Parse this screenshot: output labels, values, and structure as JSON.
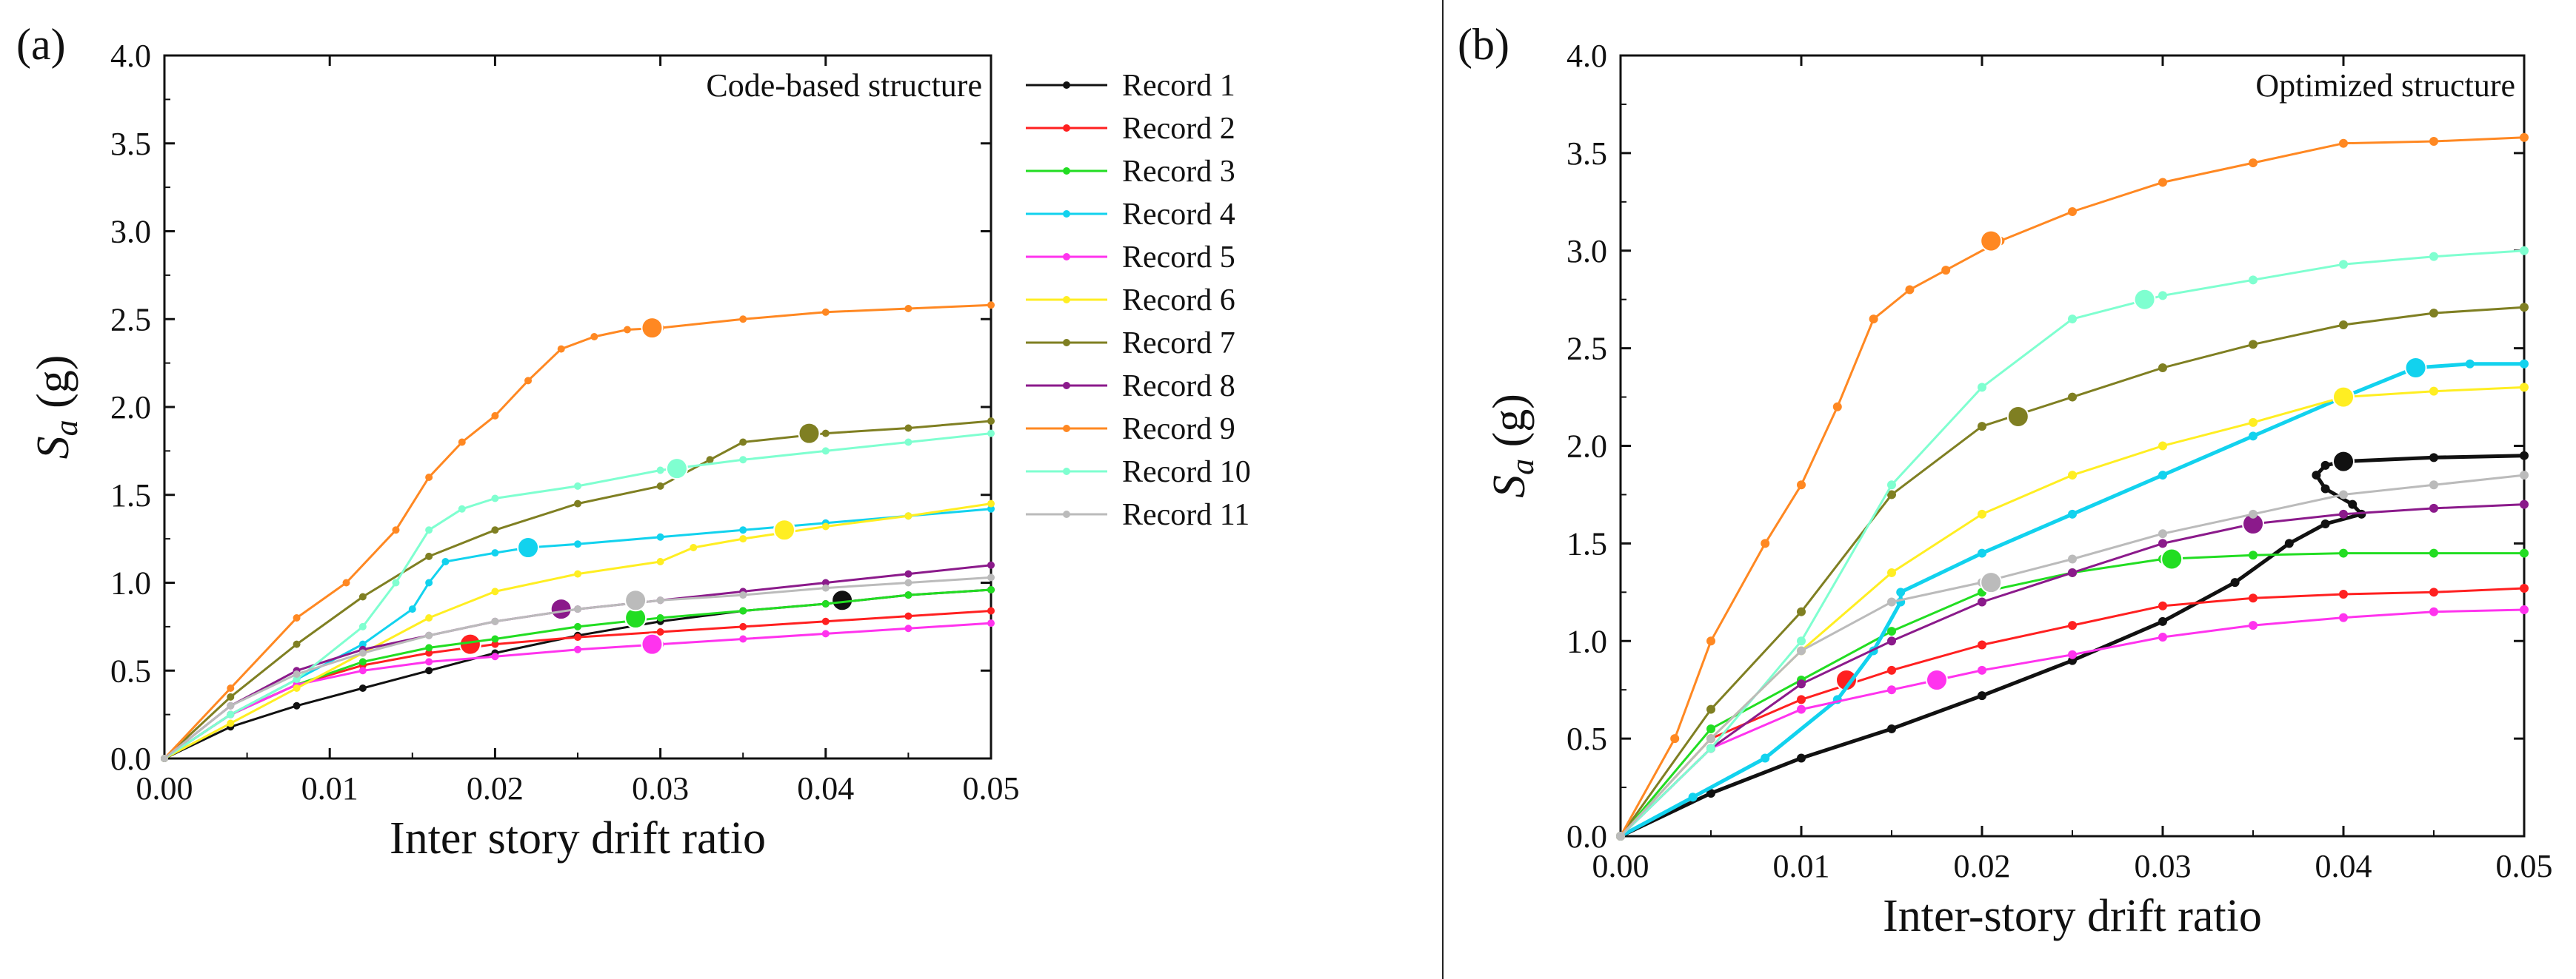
{
  "chart_data": [
    {
      "panel_label": "(a)",
      "type": "line",
      "annotation": "Code-based structure",
      "xlabel": "Inter story drift ratio",
      "ylabel_main": "S",
      "ylabel_sub": "a",
      "ylabel_unit": " (g)",
      "xlim": [
        0,
        0.05
      ],
      "ylim": [
        0,
        4.0
      ],
      "xticks": [
        "0.00",
        "0.01",
        "0.02",
        "0.03",
        "0.04",
        "0.05"
      ],
      "yticks": [
        "0.0",
        "0.5",
        "1.0",
        "1.5",
        "2.0",
        "2.5",
        "3.0",
        "3.5",
        "4.0"
      ],
      "legend": {
        "placement": "right-outside"
      },
      "series": [
        {
          "name": "Record 1",
          "color": "#111111",
          "x": [
            0,
            0.004,
            0.008,
            0.012,
            0.016,
            0.02,
            0.025,
            0.03,
            0.035,
            0.04,
            0.045,
            0.05
          ],
          "y": [
            0,
            0.18,
            0.3,
            0.4,
            0.5,
            0.6,
            0.7,
            0.78,
            0.84,
            0.88,
            0.93,
            0.96
          ],
          "marker": [
            0.041,
            0.9
          ]
        },
        {
          "name": "Record 2",
          "color": "#ff2020",
          "x": [
            0,
            0.004,
            0.008,
            0.012,
            0.016,
            0.02,
            0.025,
            0.03,
            0.035,
            0.04,
            0.045,
            0.05
          ],
          "y": [
            0,
            0.25,
            0.42,
            0.53,
            0.6,
            0.65,
            0.69,
            0.72,
            0.75,
            0.78,
            0.81,
            0.84
          ],
          "marker": [
            0.0185,
            0.65
          ]
        },
        {
          "name": "Record 3",
          "color": "#22dd22",
          "x": [
            0,
            0.004,
            0.008,
            0.012,
            0.016,
            0.02,
            0.025,
            0.03,
            0.035,
            0.04,
            0.045,
            0.05
          ],
          "y": [
            0,
            0.25,
            0.42,
            0.55,
            0.63,
            0.68,
            0.75,
            0.8,
            0.84,
            0.88,
            0.93,
            0.96
          ],
          "marker": [
            0.0285,
            0.8
          ]
        },
        {
          "name": "Record 4",
          "color": "#12d2ee",
          "x": [
            0,
            0.004,
            0.008,
            0.012,
            0.015,
            0.016,
            0.017,
            0.02,
            0.022,
            0.025,
            0.03,
            0.035,
            0.04,
            0.045,
            0.05
          ],
          "y": [
            0,
            0.25,
            0.45,
            0.65,
            0.85,
            1.0,
            1.12,
            1.17,
            1.2,
            1.22,
            1.26,
            1.3,
            1.34,
            1.38,
            1.42
          ],
          "marker": [
            0.022,
            1.2
          ]
        },
        {
          "name": "Record 5",
          "color": "#ff33ee",
          "x": [
            0,
            0.004,
            0.008,
            0.012,
            0.016,
            0.02,
            0.025,
            0.03,
            0.035,
            0.04,
            0.045,
            0.05
          ],
          "y": [
            0,
            0.25,
            0.42,
            0.5,
            0.55,
            0.58,
            0.62,
            0.65,
            0.68,
            0.71,
            0.74,
            0.77
          ],
          "marker": [
            0.0295,
            0.65
          ]
        },
        {
          "name": "Record 6",
          "color": "#ffee22",
          "x": [
            0,
            0.004,
            0.008,
            0.012,
            0.016,
            0.02,
            0.025,
            0.03,
            0.032,
            0.035,
            0.04,
            0.045,
            0.05
          ],
          "y": [
            0,
            0.2,
            0.4,
            0.6,
            0.8,
            0.95,
            1.05,
            1.12,
            1.2,
            1.25,
            1.32,
            1.38,
            1.45
          ],
          "marker": [
            0.0375,
            1.3
          ]
        },
        {
          "name": "Record 7",
          "color": "#7f7f22",
          "x": [
            0,
            0.004,
            0.008,
            0.012,
            0.016,
            0.02,
            0.025,
            0.03,
            0.033,
            0.035,
            0.04,
            0.045,
            0.05
          ],
          "y": [
            0,
            0.35,
            0.65,
            0.92,
            1.15,
            1.3,
            1.45,
            1.55,
            1.7,
            1.8,
            1.85,
            1.88,
            1.92
          ],
          "marker": [
            0.039,
            1.85
          ]
        },
        {
          "name": "Record 8",
          "color": "#8b1a8b",
          "x": [
            0,
            0.004,
            0.008,
            0.012,
            0.016,
            0.02,
            0.025,
            0.03,
            0.035,
            0.04,
            0.045,
            0.05
          ],
          "y": [
            0,
            0.3,
            0.5,
            0.62,
            0.7,
            0.78,
            0.85,
            0.9,
            0.95,
            1.0,
            1.05,
            1.1
          ],
          "marker": [
            0.024,
            0.85
          ]
        },
        {
          "name": "Record 9",
          "color": "#ff8822",
          "x": [
            0,
            0.004,
            0.008,
            0.011,
            0.014,
            0.016,
            0.018,
            0.02,
            0.022,
            0.024,
            0.026,
            0.028,
            0.03,
            0.035,
            0.04,
            0.045,
            0.05
          ],
          "y": [
            0,
            0.4,
            0.8,
            1.0,
            1.3,
            1.6,
            1.8,
            1.95,
            2.15,
            2.33,
            2.4,
            2.44,
            2.45,
            2.5,
            2.54,
            2.56,
            2.58
          ],
          "marker": [
            0.0295,
            2.45
          ]
        },
        {
          "name": "Record 10",
          "color": "#7fffd0",
          "x": [
            0,
            0.004,
            0.008,
            0.012,
            0.014,
            0.016,
            0.018,
            0.02,
            0.025,
            0.03,
            0.035,
            0.04,
            0.045,
            0.05
          ],
          "y": [
            0,
            0.25,
            0.45,
            0.75,
            1.0,
            1.3,
            1.42,
            1.48,
            1.55,
            1.64,
            1.7,
            1.75,
            1.8,
            1.85
          ],
          "marker": [
            0.031,
            1.65
          ]
        },
        {
          "name": "Record 11",
          "color": "#bbbbbb",
          "x": [
            0,
            0.004,
            0.008,
            0.012,
            0.016,
            0.02,
            0.025,
            0.03,
            0.035,
            0.04,
            0.045,
            0.05
          ],
          "y": [
            0,
            0.3,
            0.48,
            0.6,
            0.7,
            0.78,
            0.85,
            0.9,
            0.93,
            0.97,
            1.0,
            1.03
          ],
          "marker": [
            0.0285,
            0.9
          ]
        }
      ]
    },
    {
      "panel_label": "(b)",
      "type": "line",
      "annotation": "Optimized structure",
      "xlabel": "Inter-story drift ratio",
      "ylabel_main": "S",
      "ylabel_sub": "a",
      "ylabel_unit": " (g)",
      "xlim": [
        0,
        0.05
      ],
      "ylim": [
        0,
        4.0
      ],
      "xticks": [
        "0.00",
        "0.01",
        "0.02",
        "0.03",
        "0.04",
        "0.05"
      ],
      "yticks": [
        "0.0",
        "0.5",
        "1.0",
        "1.5",
        "2.0",
        "2.5",
        "3.0",
        "3.5",
        "4.0"
      ],
      "series": [
        {
          "name": "Record 1",
          "color": "#111111",
          "x": [
            0,
            0.005,
            0.01,
            0.015,
            0.02,
            0.025,
            0.03,
            0.034,
            0.037,
            0.039,
            0.041,
            0.0405,
            0.039,
            0.0385,
            0.039,
            0.04,
            0.045,
            0.05
          ],
          "y": [
            0,
            0.22,
            0.4,
            0.55,
            0.72,
            0.9,
            1.1,
            1.3,
            1.5,
            1.6,
            1.65,
            1.7,
            1.78,
            1.85,
            1.9,
            1.92,
            1.94,
            1.95
          ],
          "marker": [
            0.04,
            1.92
          ]
        },
        {
          "name": "Record 2",
          "color": "#ff2020",
          "x": [
            0,
            0.005,
            0.01,
            0.015,
            0.02,
            0.025,
            0.03,
            0.035,
            0.04,
            0.045,
            0.05
          ],
          "y": [
            0,
            0.5,
            0.7,
            0.85,
            0.98,
            1.08,
            1.18,
            1.22,
            1.24,
            1.25,
            1.27
          ],
          "marker": [
            0.0125,
            0.8
          ]
        },
        {
          "name": "Record 3",
          "color": "#22dd22",
          "x": [
            0,
            0.005,
            0.01,
            0.015,
            0.02,
            0.025,
            0.03,
            0.035,
            0.04,
            0.045,
            0.05
          ],
          "y": [
            0,
            0.55,
            0.8,
            1.05,
            1.25,
            1.35,
            1.42,
            1.44,
            1.45,
            1.45,
            1.45
          ],
          "marker": [
            0.0305,
            1.42
          ]
        },
        {
          "name": "Record 4",
          "color": "#12d2ee",
          "x": [
            0,
            0.004,
            0.008,
            0.012,
            0.014,
            0.0155,
            0.0155,
            0.02,
            0.025,
            0.03,
            0.035,
            0.04,
            0.044,
            0.047,
            0.05
          ],
          "y": [
            0,
            0.2,
            0.4,
            0.7,
            0.95,
            1.2,
            1.25,
            1.45,
            1.65,
            1.85,
            2.05,
            2.25,
            2.4,
            2.42,
            2.42
          ],
          "marker": [
            0.044,
            2.4
          ]
        },
        {
          "name": "Record 5",
          "color": "#ff33ee",
          "x": [
            0,
            0.005,
            0.01,
            0.015,
            0.02,
            0.025,
            0.03,
            0.035,
            0.04,
            0.045,
            0.05
          ],
          "y": [
            0,
            0.45,
            0.65,
            0.75,
            0.85,
            0.93,
            1.02,
            1.08,
            1.12,
            1.15,
            1.16
          ],
          "marker": [
            0.0175,
            0.8
          ]
        },
        {
          "name": "Record 6",
          "color": "#ffee22",
          "x": [
            0,
            0.005,
            0.01,
            0.015,
            0.02,
            0.025,
            0.03,
            0.035,
            0.04,
            0.045,
            0.05
          ],
          "y": [
            0,
            0.5,
            0.95,
            1.35,
            1.65,
            1.85,
            2.0,
            2.12,
            2.25,
            2.28,
            2.3
          ],
          "marker": [
            0.04,
            2.25
          ]
        },
        {
          "name": "Record 7",
          "color": "#7f7f22",
          "x": [
            0,
            0.005,
            0.01,
            0.015,
            0.02,
            0.025,
            0.03,
            0.035,
            0.04,
            0.045,
            0.05
          ],
          "y": [
            0,
            0.65,
            1.15,
            1.75,
            2.1,
            2.25,
            2.4,
            2.52,
            2.62,
            2.68,
            2.71
          ],
          "marker": [
            0.022,
            2.15
          ]
        },
        {
          "name": "Record 8",
          "color": "#8b1a8b",
          "x": [
            0,
            0.005,
            0.01,
            0.015,
            0.02,
            0.025,
            0.03,
            0.035,
            0.04,
            0.045,
            0.05
          ],
          "y": [
            0,
            0.45,
            0.78,
            1.0,
            1.2,
            1.35,
            1.5,
            1.6,
            1.65,
            1.68,
            1.7
          ],
          "marker": [
            0.035,
            1.6
          ]
        },
        {
          "name": "Record 9",
          "color": "#ff8822",
          "x": [
            0,
            0.003,
            0.005,
            0.008,
            0.01,
            0.012,
            0.014,
            0.016,
            0.018,
            0.021,
            0.025,
            0.03,
            0.035,
            0.04,
            0.045,
            0.05
          ],
          "y": [
            0,
            0.5,
            1.0,
            1.5,
            1.8,
            2.2,
            2.65,
            2.8,
            2.9,
            3.05,
            3.2,
            3.35,
            3.45,
            3.55,
            3.56,
            3.58
          ],
          "marker": [
            0.0205,
            3.05
          ]
        },
        {
          "name": "Record 10",
          "color": "#7fffd0",
          "x": [
            0,
            0.005,
            0.01,
            0.015,
            0.02,
            0.025,
            0.03,
            0.035,
            0.04,
            0.045,
            0.05
          ],
          "y": [
            0,
            0.45,
            1.0,
            1.8,
            2.3,
            2.65,
            2.77,
            2.85,
            2.93,
            2.97,
            3.0
          ],
          "marker": [
            0.029,
            2.75
          ]
        },
        {
          "name": "Record 11",
          "color": "#bbbbbb",
          "x": [
            0,
            0.005,
            0.01,
            0.015,
            0.02,
            0.025,
            0.03,
            0.035,
            0.04,
            0.045,
            0.05
          ],
          "y": [
            0,
            0.5,
            0.95,
            1.2,
            1.3,
            1.42,
            1.55,
            1.65,
            1.75,
            1.8,
            1.85
          ],
          "marker": [
            0.0205,
            1.3
          ]
        }
      ]
    }
  ]
}
